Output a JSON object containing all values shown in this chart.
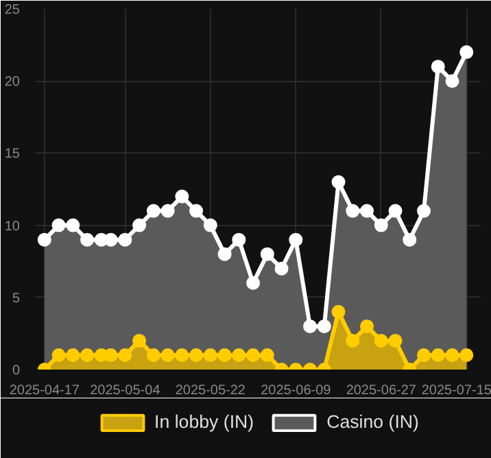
{
  "chart_data": {
    "type": "area",
    "x": [
      "2025-04-17",
      "2025-04-20",
      "2025-04-23",
      "2025-04-26",
      "2025-04-29",
      "2025-05-01",
      "2025-05-04",
      "2025-05-07",
      "2025-05-10",
      "2025-05-13",
      "2025-05-16",
      "2025-05-19",
      "2025-05-22",
      "2025-05-25",
      "2025-05-28",
      "2025-05-31",
      "2025-06-03",
      "2025-06-06",
      "2025-06-09",
      "2025-06-12",
      "2025-06-15",
      "2025-06-18",
      "2025-06-21",
      "2025-06-24",
      "2025-06-27",
      "2025-06-30",
      "2025-07-03",
      "2025-07-06",
      "2025-07-09",
      "2025-07-12",
      "2025-07-15"
    ],
    "series": [
      {
        "name": "In lobby (IN)",
        "color": "#ffcc00",
        "values": [
          0,
          1,
          1,
          1,
          1,
          1,
          1,
          2,
          1,
          1,
          1,
          1,
          1,
          1,
          1,
          1,
          1,
          0,
          0,
          0,
          0,
          4,
          2,
          3,
          2,
          2,
          0,
          1,
          1,
          1,
          1
        ]
      },
      {
        "name": "Casino (IN)",
        "color": "#ffffff",
        "values": [
          9,
          10,
          10,
          9,
          9,
          9,
          9,
          10,
          11,
          11,
          12,
          11,
          10,
          8,
          9,
          6,
          8,
          7,
          9,
          3,
          3,
          13,
          11,
          11,
          10,
          11,
          9,
          11,
          21,
          20,
          22
        ]
      }
    ],
    "ylim": [
      0,
      25
    ],
    "yticks": [
      0,
      5,
      10,
      15,
      20,
      25
    ],
    "xticks": [
      "2025-04-17",
      "2025-05-04",
      "2025-05-22",
      "2025-06-09",
      "2025-06-27",
      "2025-07-15"
    ],
    "xlim": [
      "2025-04-15",
      "2025-07-18"
    ],
    "grid": true,
    "legend": "bottom",
    "marker": "circle",
    "line_style": "solid"
  }
}
